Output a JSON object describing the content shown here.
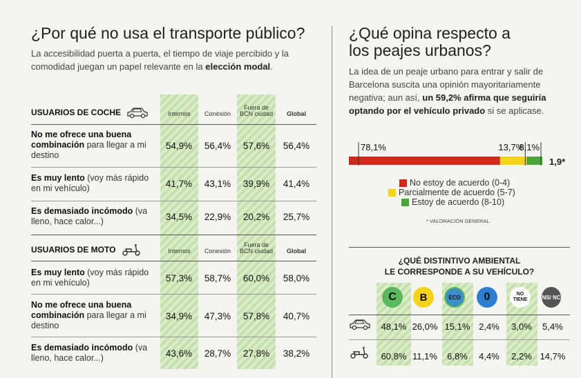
{
  "left": {
    "title": "¿Por qué no usa el transporte público?",
    "lead_pre": "La accesibilidad puerta a puerta, el tiempo de viaje percibido y la comodidad juegan un papel relevante en la ",
    "lead_bold": "elección modal",
    "lead_post": ".",
    "columns": [
      "Internos",
      "Conexión",
      "Fuera de BCN ciudad",
      "Global"
    ],
    "section_car": "USUARIOS DE COCHE",
    "section_moto": "USUARIOS DE MOTO",
    "car_rows": [
      {
        "bold": "No me ofrece una buena combinación",
        "rest": " para llegar a mi destino",
        "values": [
          "54,9%",
          "56,4%",
          "57,6%",
          "56,4%"
        ]
      },
      {
        "bold": "Es muy lento",
        "rest": " (voy más rápido en mi vehículo)",
        "values": [
          "41,7%",
          "43,1%",
          "39,9%",
          "41,4%"
        ]
      },
      {
        "bold": "Es demasiado incómodo",
        "rest": " (va lleno, hace calor...)",
        "values": [
          "34,5%",
          "22,9%",
          "20,2%",
          "25,7%"
        ]
      }
    ],
    "moto_rows": [
      {
        "bold": "Es muy lento",
        "rest": " (voy más rápido en mi vehículo)",
        "values": [
          "57,3%",
          "58,7%",
          "60,0%",
          "58,0%"
        ]
      },
      {
        "bold": "No me ofrece una buena combinación",
        "rest": " para llegar a mi destino",
        "values": [
          "34,9%",
          "47,3%",
          "57,8%",
          "40,7%"
        ]
      },
      {
        "bold": "Es demasiado incómodo",
        "rest": " (va lleno, hace calor...)",
        "values": [
          "43,6%",
          "28,7%",
          "27,8%",
          "38,2%"
        ]
      }
    ]
  },
  "right": {
    "title_line1": "¿Qué opina respecto a",
    "title_line2": "los peajes urbanos?",
    "lead_pre": "La idea de un peaje urbano para entrar y salir de Barcelona suscita una opinión mayoritariamente negativa; aun así, ",
    "lead_bold": "un 59,2% afirma que seguiría optando por el vehículo privado",
    "lead_post": " si se aplicase.",
    "bar_labels": [
      "78,1%",
      "13,7%",
      "8,1%"
    ],
    "rating_label": "1,9*",
    "legend": [
      "No estoy de acuerdo (0-4)",
      "Parcialmente de acuerdo (5-7)",
      "Estoy de acuerdo (8-10)"
    ],
    "footnote": "* VALORACIÓN GENERAL",
    "table_title_line1": "¿QUÉ DISTINTIVO AMBIENTAL",
    "table_title_line2": "LE CORRESPONDE A SU VEHÍCULO?",
    "badges": [
      {
        "label": "C",
        "color": "#5cb85c"
      },
      {
        "label": "B",
        "color": "#f5d31a"
      },
      {
        "label": "ECO",
        "color": "#3b8ec8"
      },
      {
        "label": "0",
        "color": "#2c7fd0"
      },
      {
        "label": "NO TIENE",
        "color": "#ffffff"
      },
      {
        "label": "NS/ NC",
        "color": "#555555"
      }
    ],
    "car_values": [
      "48,1%",
      "26,0%",
      "15,1%",
      "2,4%",
      "3,0%",
      "5,4%"
    ],
    "moto_values": [
      "60,8%",
      "11,1%",
      "6,8%",
      "4,4%",
      "2,2%",
      "14,7%"
    ]
  },
  "colors": {
    "red": "#d0281c",
    "yellow": "#f5d31a",
    "green": "#4aa63a"
  },
  "chart_data": {
    "type": "bar",
    "categories": [
      "No estoy de acuerdo (0-4)",
      "Parcialmente de acuerdo (5-7)",
      "Estoy de acuerdo (8-10)"
    ],
    "values": [
      78.1,
      13.7,
      8.1
    ],
    "stacked": true
  }
}
